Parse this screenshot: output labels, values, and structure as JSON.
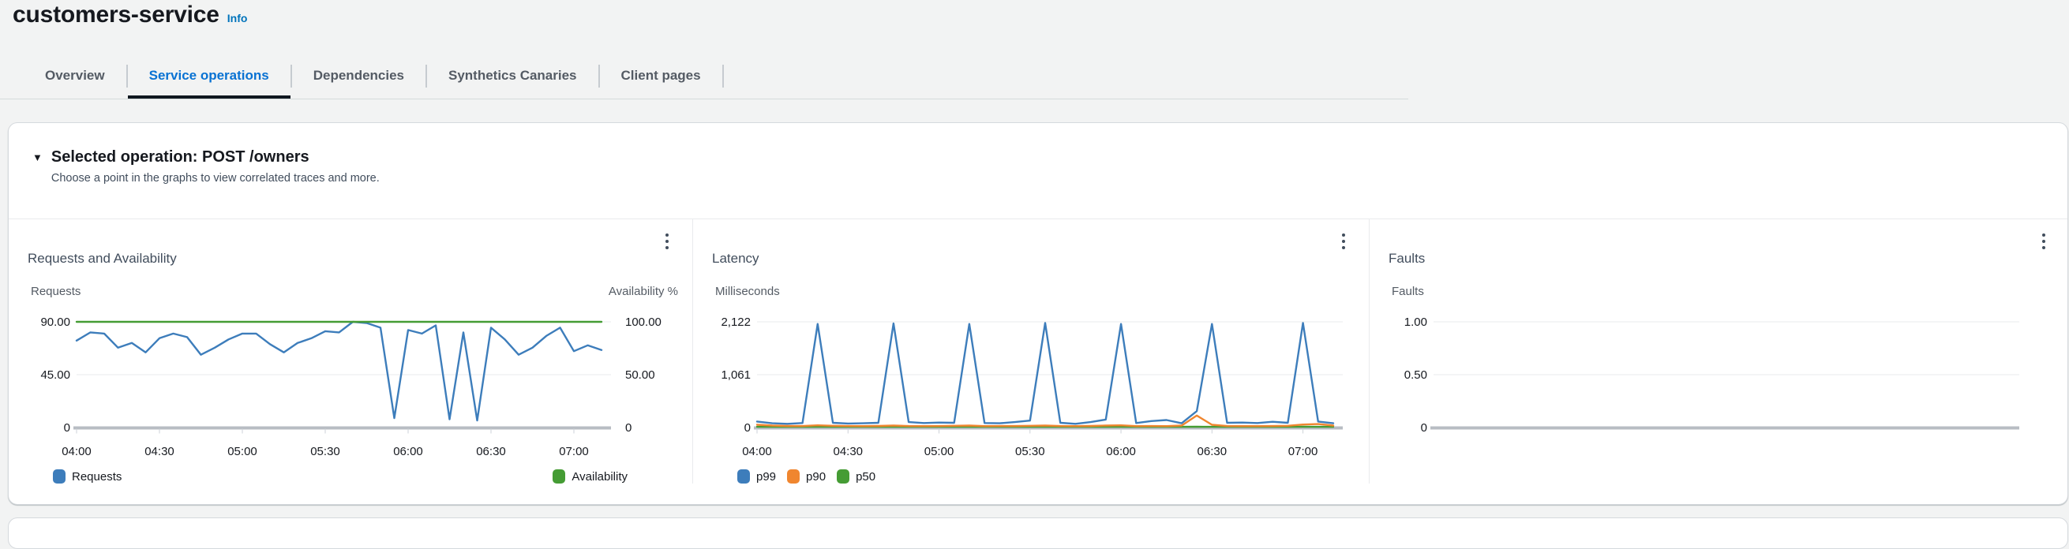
{
  "page": {
    "title": "customers-service",
    "info_label": "Info"
  },
  "tabs": [
    {
      "label": "Overview",
      "active": false
    },
    {
      "label": "Service operations",
      "active": true
    },
    {
      "label": "Dependencies",
      "active": false
    },
    {
      "label": "Synthetics Canaries",
      "active": false
    },
    {
      "label": "Client pages",
      "active": false
    }
  ],
  "section": {
    "heading": "Selected operation: POST /owners",
    "subheading": "Choose a point in the graphs to view correlated traces and more."
  },
  "colors": {
    "blue": "#3d7dbb",
    "orange": "#f0862f",
    "green": "#459c34",
    "link": "#0073bb",
    "active_tab": "#0972d3"
  },
  "chart_data": [
    {
      "type": "line",
      "title": "Requests and Availability",
      "ylabel_left": "Requests",
      "ylabel_right": "Availability %",
      "yticks_left": [
        "90.00",
        "45.00",
        "0"
      ],
      "yticks_right": [
        "100.00",
        "50.00",
        "0"
      ],
      "ylim_left": [
        0,
        90
      ],
      "ylim_right": [
        0,
        100
      ],
      "x_start": "04:00",
      "x_end": "07:10",
      "x_step_minutes": 5,
      "xticks": [
        "04:00",
        "04:30",
        "05:00",
        "05:30",
        "06:00",
        "06:30",
        "07:00"
      ],
      "series": [
        {
          "name": "Requests",
          "color": "blue",
          "ymax": 90,
          "z": 1,
          "values": [
            74,
            81,
            80,
            68,
            72,
            64,
            76,
            80,
            77,
            62,
            68,
            75,
            80,
            80,
            71,
            64,
            72,
            76,
            82,
            81,
            90,
            89,
            85,
            8,
            83,
            80,
            87,
            7,
            81,
            6,
            85,
            75,
            62,
            68,
            78,
            85,
            65,
            70,
            66
          ]
        },
        {
          "name": "Availability",
          "color": "green",
          "ymax": 100,
          "z": 2,
          "values": [
            100,
            100,
            100,
            100,
            100,
            100,
            100,
            100,
            100,
            100,
            100,
            100,
            100,
            100,
            100,
            100,
            100,
            100,
            100,
            100,
            100,
            100,
            100,
            100,
            100,
            100,
            100,
            100,
            100,
            100,
            100,
            100,
            100,
            100,
            100,
            100,
            100,
            100,
            100
          ]
        }
      ],
      "legend": [
        {
          "label": "Requests",
          "color": "blue",
          "align": "left"
        },
        {
          "label": "Availability",
          "color": "green",
          "align": "right"
        }
      ]
    },
    {
      "type": "line",
      "title": "Latency",
      "ylabel_left": "Milliseconds",
      "yticks_left": [
        "2,122",
        "1,061",
        "0"
      ],
      "ylim_left": [
        0,
        2122
      ],
      "x_start": "04:00",
      "x_end": "07:10",
      "x_step_minutes": 5,
      "xticks": [
        "04:00",
        "04:30",
        "05:00",
        "05:30",
        "06:00",
        "06:30",
        "07:00"
      ],
      "series": [
        {
          "name": "p99",
          "color": "blue",
          "ymax": 2122,
          "z": 3,
          "values": [
            120,
            85,
            75,
            90,
            2080,
            95,
            80,
            85,
            95,
            2090,
            110,
            90,
            100,
            95,
            2080,
            90,
            85,
            110,
            140,
            2100,
            95,
            75,
            110,
            160,
            2080,
            90,
            130,
            150,
            85,
            330,
            2080,
            95,
            100,
            90,
            115,
            95,
            2100,
            120,
            85
          ]
        },
        {
          "name": "p90",
          "color": "orange",
          "ymax": 2122,
          "z": 2,
          "values": [
            55,
            40,
            32,
            30,
            45,
            35,
            30,
            28,
            32,
            40,
            30,
            28,
            30,
            35,
            40,
            28,
            30,
            30,
            35,
            40,
            30,
            28,
            32,
            40,
            45,
            28,
            30,
            28,
            40,
            240,
            55,
            30,
            28,
            28,
            30,
            35,
            60,
            70,
            40
          ]
        },
        {
          "name": "p50",
          "color": "green",
          "ymax": 2122,
          "z": 1,
          "values": [
            15,
            15,
            15,
            15,
            16,
            15,
            14,
            15,
            15,
            16,
            15,
            14,
            15,
            15,
            15,
            14,
            15,
            16,
            15,
            15,
            14,
            15,
            15,
            16,
            15,
            14,
            15,
            15,
            15,
            16,
            15,
            14,
            15,
            15,
            14,
            15,
            16,
            15,
            15
          ]
        }
      ],
      "legend": [
        {
          "label": "p99",
          "color": "blue",
          "align": "left"
        },
        {
          "label": "p90",
          "color": "orange",
          "align": "left"
        },
        {
          "label": "p50",
          "color": "green",
          "align": "left"
        }
      ]
    },
    {
      "type": "line",
      "title": "Faults",
      "ylabel_left": "Faults",
      "yticks_left": [
        "1.00",
        "0.50",
        "0"
      ],
      "ylim_left": [
        0,
        1
      ],
      "xticks": [],
      "series": [],
      "legend": []
    }
  ]
}
